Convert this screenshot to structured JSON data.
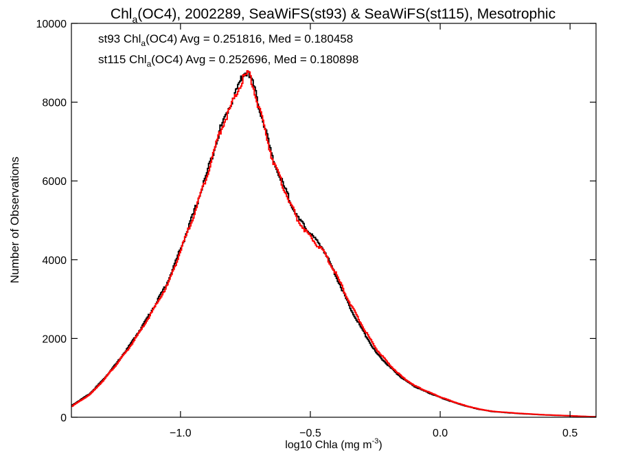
{
  "chart_data": {
    "type": "line",
    "title": {
      "pre": "Chl",
      "sub": "a",
      "post": "(OC4), 2002289, SeaWiFS(st93) & SeaWiFS(st115), Mesotrophic"
    },
    "xlabel": {
      "pre": "log10 Chla (mg m",
      "sup": "-3",
      "post": ")"
    },
    "ylabel": "Number of Observations",
    "xlim": [
      -1.42,
      0.6
    ],
    "ylim": [
      0,
      10000
    ],
    "x_ticks": [
      -1.0,
      -0.5,
      0.0,
      0.5
    ],
    "x_tick_labels": [
      "−1.0",
      "−0.5",
      "0.0",
      "0.5"
    ],
    "y_ticks": [
      0,
      2000,
      4000,
      6000,
      8000,
      10000
    ],
    "y_tick_labels": [
      "0",
      "2000",
      "4000",
      "6000",
      "8000",
      "10000"
    ],
    "grid": false,
    "legend_position": "top-left",
    "x": [
      -1.42,
      -1.35,
      -1.3,
      -1.25,
      -1.2,
      -1.15,
      -1.1,
      -1.05,
      -1.0,
      -0.95,
      -0.9,
      -0.85,
      -0.8,
      -0.76,
      -0.74,
      -0.72,
      -0.7,
      -0.67,
      -0.65,
      -0.6,
      -0.55,
      -0.5,
      -0.45,
      -0.4,
      -0.35,
      -0.3,
      -0.25,
      -0.2,
      -0.15,
      -0.1,
      -0.05,
      0.0,
      0.05,
      0.1,
      0.15,
      0.2,
      0.3,
      0.4,
      0.5,
      0.55,
      0.6
    ],
    "series": [
      {
        "legend": {
          "pre": "st93 Chl",
          "sub": "a",
          "post": "(OC4) Avg = 0.251816, Med = 0.180458"
        },
        "color": "#000000",
        "values": [
          300,
          600,
          950,
          1350,
          1800,
          2300,
          2850,
          3450,
          4300,
          5200,
          6200,
          7300,
          8100,
          8700,
          8800,
          8400,
          7900,
          7200,
          6600,
          5800,
          5050,
          4650,
          4250,
          3550,
          2800,
          2200,
          1650,
          1300,
          1000,
          780,
          630,
          500,
          380,
          280,
          200,
          145,
          95,
          60,
          35,
          20,
          10
        ]
      },
      {
        "legend": {
          "pre": "st115 Chl",
          "sub": "a",
          "post": "(OC4) Avg = 0.252696, Med = 0.180898"
        },
        "color": "#ff0000",
        "values": [
          280,
          580,
          930,
          1330,
          1760,
          2250,
          2800,
          3380,
          4250,
          5150,
          6150,
          7250,
          8000,
          8600,
          8750,
          8350,
          7850,
          7150,
          6600,
          5750,
          5000,
          4550,
          4200,
          3600,
          2900,
          2300,
          1750,
          1350,
          1030,
          800,
          650,
          510,
          390,
          285,
          205,
          150,
          100,
          62,
          37,
          22,
          10
        ]
      }
    ]
  }
}
